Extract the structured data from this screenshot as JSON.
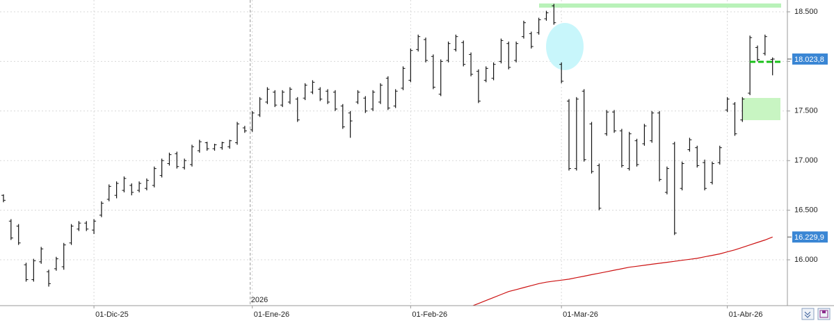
{
  "chart_data": {
    "type": "ohlc",
    "year_label": "2026",
    "categories": [
      null,
      null,
      null,
      null,
      null,
      null,
      null,
      null,
      null,
      null,
      null,
      null,
      "01-Dic-25",
      null,
      null,
      null,
      null,
      null,
      null,
      null,
      null,
      null,
      null,
      null,
      null,
      null,
      null,
      null,
      null,
      null,
      null,
      null,
      null,
      "01-Ene-26",
      null,
      null,
      null,
      null,
      null,
      null,
      null,
      null,
      null,
      null,
      null,
      null,
      null,
      null,
      null,
      null,
      null,
      null,
      null,
      null,
      "01-Feb-26",
      null,
      null,
      null,
      null,
      null,
      null,
      null,
      null,
      null,
      null,
      null,
      null,
      null,
      null,
      null,
      null,
      null,
      null,
      null,
      "01-Mar-26",
      null,
      null,
      null,
      null,
      null,
      null,
      null,
      null,
      null,
      null,
      null,
      null,
      null,
      null,
      null,
      null,
      null,
      null,
      null,
      null,
      null,
      "01-Abr-26",
      null,
      null,
      null,
      null,
      null,
      null
    ],
    "ohlc": {
      "color": "#111111",
      "open": [
        16650,
        16390,
        16340,
        15950,
        15800,
        15980,
        15880,
        15910,
        15930,
        16170,
        16310,
        16370,
        16300,
        16450,
        16610,
        16650,
        16700,
        16750,
        16700,
        16720,
        16750,
        16850,
        16970,
        17070,
        16930,
        16960,
        17100,
        17180,
        17120,
        17130,
        17140,
        17180,
        17330,
        17310,
        17460,
        17590,
        17690,
        17560,
        17590,
        17620,
        17630,
        17690,
        17720,
        17700,
        17690,
        17550,
        17480,
        17590,
        17630,
        17520,
        17590,
        17830,
        17550,
        17730,
        17810,
        18120,
        18220,
        18050,
        17670,
        18010,
        18120,
        18190,
        18070,
        17900,
        17810,
        17830,
        18000,
        18180,
        18010,
        18250,
        18280,
        18290,
        18430,
        18560,
        17970,
        17600,
        16920,
        17700,
        17370,
        16950,
        17270,
        17490,
        17300,
        16920,
        17200,
        17170,
        17200,
        17480,
        16680,
        17170,
        16720,
        17110,
        17130,
        16980,
        16780,
        16980,
        17510,
        17570,
        17410,
        17680,
        18140,
        18080,
        18020
      ],
      "high": [
        16660,
        16410,
        16360,
        15970,
        16010,
        16130,
        15900,
        16030,
        16170,
        16360,
        16390,
        16390,
        16410,
        16590,
        16760,
        16790,
        16840,
        16770,
        16790,
        16820,
        16940,
        17020,
        17080,
        17090,
        17020,
        17160,
        17210,
        17190,
        17170,
        17190,
        17210,
        17390,
        17350,
        17500,
        17640,
        17740,
        17710,
        17710,
        17740,
        17640,
        17780,
        17810,
        17740,
        17720,
        17710,
        17570,
        17500,
        17710,
        17650,
        17710,
        17780,
        17850,
        17720,
        17950,
        18130,
        18270,
        18240,
        18070,
        18020,
        18200,
        18270,
        18210,
        18090,
        17920,
        17950,
        17990,
        18230,
        18200,
        18200,
        18410,
        18300,
        18440,
        18510,
        18580,
        17990,
        17620,
        17640,
        17720,
        17390,
        16970,
        17510,
        17510,
        17320,
        17290,
        17220,
        17370,
        17500,
        17500,
        16940,
        17190,
        16990,
        17230,
        17150,
        17010,
        16990,
        17150,
        17640,
        17590,
        17640,
        18260,
        18160,
        18270,
        18040
      ],
      "low": [
        16580,
        16200,
        16150,
        15780,
        15780,
        15960,
        15730,
        15890,
        15900,
        16150,
        16290,
        16290,
        16260,
        16430,
        16590,
        16620,
        16680,
        16650,
        16680,
        16700,
        16730,
        16830,
        16950,
        16920,
        16910,
        16940,
        17080,
        17100,
        17100,
        17110,
        17120,
        17160,
        17280,
        17290,
        17440,
        17570,
        17540,
        17540,
        17570,
        17390,
        17610,
        17670,
        17600,
        17570,
        17500,
        17320,
        17230,
        17570,
        17480,
        17500,
        17570,
        17510,
        17530,
        17710,
        17790,
        18100,
        17990,
        17720,
        17650,
        17990,
        18100,
        17950,
        17850,
        17580,
        17790,
        17810,
        17980,
        17920,
        17990,
        18230,
        18130,
        18270,
        18410,
        18370,
        17780,
        16900,
        16900,
        16990,
        16870,
        16500,
        17250,
        17280,
        16930,
        16900,
        16940,
        17150,
        17180,
        16790,
        16660,
        16250,
        16700,
        17090,
        16930,
        16700,
        16760,
        16960,
        17490,
        17250,
        17390,
        17660,
        18000,
        18060,
        17860
      ],
      "close": [
        16600,
        16220,
        16170,
        15800,
        15990,
        16110,
        15760,
        16010,
        16150,
        16340,
        16370,
        16310,
        16390,
        16570,
        16740,
        16770,
        16820,
        16680,
        16770,
        16800,
        16920,
        17000,
        17060,
        16940,
        17000,
        17140,
        17190,
        17120,
        17160,
        17180,
        17200,
        17370,
        17300,
        17480,
        17620,
        17720,
        17560,
        17690,
        17720,
        17410,
        17760,
        17790,
        17620,
        17590,
        17520,
        17340,
        17400,
        17690,
        17500,
        17690,
        17760,
        17530,
        17700,
        17930,
        18110,
        18250,
        18010,
        17740,
        18000,
        18180,
        18250,
        17970,
        17870,
        17600,
        17930,
        17970,
        18210,
        17940,
        18180,
        18390,
        18150,
        18420,
        18490,
        18390,
        17800,
        16920,
        17620,
        17010,
        16890,
        16520,
        17490,
        17300,
        16950,
        17270,
        16960,
        17350,
        17480,
        16810,
        16920,
        16270,
        16970,
        17210,
        16950,
        16720,
        16970,
        17130,
        17620,
        17270,
        17620,
        18240,
        18020,
        18250,
        18023.8
      ]
    },
    "lines": [
      {
        "color": "#cc1111",
        "values": [
          null,
          null,
          null,
          null,
          null,
          null,
          null,
          null,
          null,
          null,
          null,
          null,
          null,
          null,
          null,
          null,
          null,
          null,
          null,
          null,
          null,
          null,
          null,
          null,
          null,
          null,
          null,
          null,
          null,
          null,
          null,
          null,
          null,
          null,
          null,
          null,
          null,
          null,
          null,
          null,
          null,
          null,
          null,
          null,
          null,
          null,
          null,
          null,
          null,
          null,
          null,
          null,
          null,
          null,
          null,
          null,
          null,
          null,
          null,
          null,
          null,
          null,
          15530,
          15560,
          15590,
          15620,
          15650,
          15680,
          15700,
          15720,
          15740,
          15760,
          15775,
          15785,
          15795,
          15805,
          15820,
          15835,
          15850,
          15865,
          15880,
          15895,
          15910,
          15925,
          15935,
          15945,
          15955,
          15965,
          15975,
          15985,
          15995,
          16005,
          16015,
          16030,
          16045,
          16060,
          16080,
          16100,
          16125,
          16150,
          16175,
          16200,
          16229.9
        ]
      }
    ],
    "markers": {
      "color": "#3a86d4",
      "values": [
        18023.8,
        16229.9
      ],
      "value_labels": [
        "18.023,8",
        "16.229,9"
      ]
    },
    "ylim": [
      15538,
      18619
    ],
    "yticks": [
      {
        "value": 16000,
        "label": "16.000"
      },
      {
        "value": 16500,
        "label": "16.500"
      },
      {
        "value": 17000,
        "label": "17.000"
      },
      {
        "value": 17500,
        "label": "17.500"
      },
      {
        "value": 18000,
        "label": "18.000"
      },
      {
        "value": 18500,
        "label": "18.500"
      }
    ],
    "grid": true
  }
}
